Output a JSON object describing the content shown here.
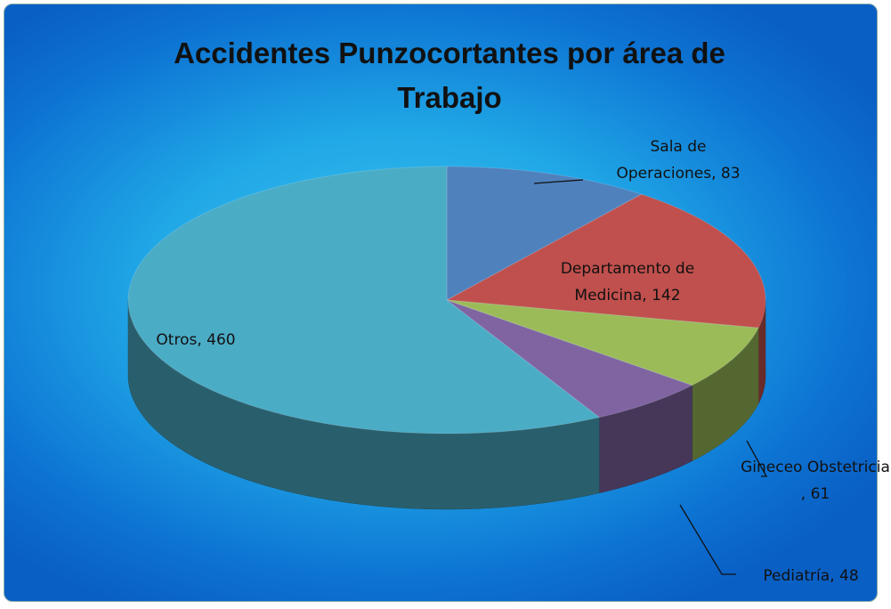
{
  "chart_data": {
    "type": "pie3d",
    "title": "Accidentes Punzocortantes por área de Trabajo",
    "values": [
      83,
      142,
      61,
      48,
      460
    ],
    "value_labels": [
      "Sala de Operaciones, 83",
      "Departamento de Medicina, 142",
      "Gineceo Obstetricia , 61",
      "Pediatría, 48",
      "Otros, 460"
    ],
    "colors": [
      "#4f81bd",
      "#c0504d",
      "#9bbb59",
      "#8064a2",
      "#4bacc6"
    ]
  }
}
